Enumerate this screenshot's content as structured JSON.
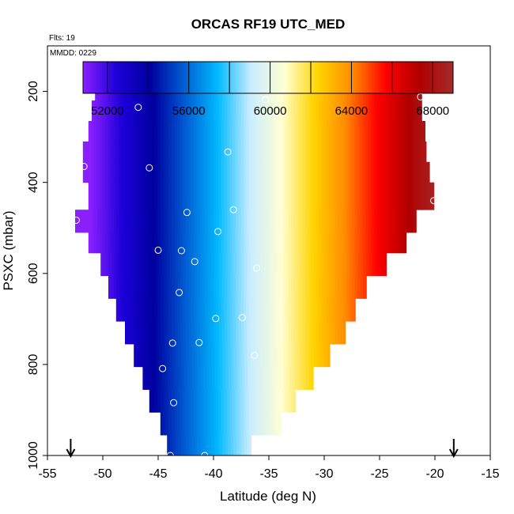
{
  "chart_data": {
    "type": "heatmap",
    "title": "ORCAS RF19 UTC_MED",
    "flights_note": "Flts: 19",
    "date_note": "MMDD: 0229",
    "xlabel": "Latitude (deg N)",
    "ylabel": "PSXC (mbar)",
    "xlim": [
      -55,
      -15
    ],
    "ylim": [
      1000,
      100
    ],
    "x_ticks": [
      -55,
      -50,
      -45,
      -40,
      -35,
      -30,
      -25,
      -20,
      -15
    ],
    "x_tick_labels": [
      "-55",
      "-50",
      "-45",
      "-40",
      "-35",
      "-30",
      "-25",
      "-20",
      "-15"
    ],
    "y_ticks": [
      200,
      400,
      600,
      800,
      1000
    ],
    "y_tick_labels": [
      "200",
      "400",
      "600",
      "800",
      "1000"
    ],
    "colorbar": {
      "range": [
        50800,
        69000
      ],
      "ticks": [
        52000,
        56000,
        60000,
        64000,
        68000
      ],
      "tick_labels": [
        "52000",
        "56000",
        "60000",
        "64000",
        "68000"
      ],
      "colors": [
        "#8a1fff",
        "#1c00d9",
        "#00009e",
        "#005ed4",
        "#00b9ff",
        "#c9ecff",
        "#ffffd3",
        "#ffd400",
        "#ff8c00",
        "#ff0000",
        "#b00000",
        "#a52a2a"
      ]
    },
    "value_model": {
      "value_at_lat_min": 50000,
      "lat_min": -52.5,
      "value_at_lat_max": 69000,
      "lat_max": -19.5
    },
    "coverage_rows": [
      {
        "p_top": 180,
        "p_bot": 205,
        "lat_min": -50.7,
        "lat_max": -25.3
      },
      {
        "p_top": 205,
        "p_bot": 220,
        "lat_min": -50.7,
        "lat_max": -21.2
      },
      {
        "p_top": 220,
        "p_bot": 265,
        "lat_min": -51.0,
        "lat_max": -21.2
      },
      {
        "p_top": 265,
        "p_bot": 310,
        "lat_min": -51.3,
        "lat_max": -20.9
      },
      {
        "p_top": 310,
        "p_bot": 355,
        "lat_min": -51.8,
        "lat_max": -20.8
      },
      {
        "p_top": 355,
        "p_bot": 400,
        "lat_min": -51.8,
        "lat_max": -20.5
      },
      {
        "p_top": 400,
        "p_bot": 460,
        "lat_min": -51.3,
        "lat_max": -20.1
      },
      {
        "p_top": 460,
        "p_bot": 510,
        "lat_min": -52.5,
        "lat_max": -21.7
      },
      {
        "p_top": 510,
        "p_bot": 555,
        "lat_min": -51.3,
        "lat_max": -22.6
      },
      {
        "p_top": 555,
        "p_bot": 605,
        "lat_min": -50.2,
        "lat_max": -24.4
      },
      {
        "p_top": 605,
        "p_bot": 655,
        "lat_min": -49.5,
        "lat_max": -26.2
      },
      {
        "p_top": 655,
        "p_bot": 705,
        "lat_min": -48.8,
        "lat_max": -27.2
      },
      {
        "p_top": 705,
        "p_bot": 755,
        "lat_min": -48.0,
        "lat_max": -28.1
      },
      {
        "p_top": 755,
        "p_bot": 805,
        "lat_min": -47.2,
        "lat_max": -29.5
      },
      {
        "p_top": 805,
        "p_bot": 855,
        "lat_min": -46.4,
        "lat_max": -31.0
      },
      {
        "p_top": 855,
        "p_bot": 905,
        "lat_min": -45.8,
        "lat_max": -32.6
      },
      {
        "p_top": 905,
        "p_bot": 955,
        "lat_min": -44.8,
        "lat_max": -33.9
      },
      {
        "p_top": 955,
        "p_bot": 1005,
        "lat_min": -44.2,
        "lat_max": -36.6
      }
    ],
    "sample_points": [
      {
        "lat": -50.5,
        "p": 188
      },
      {
        "lat": -48.0,
        "p": 186
      },
      {
        "lat": -46.8,
        "p": 235
      },
      {
        "lat": -35.0,
        "p": 188
      },
      {
        "lat": -35.3,
        "p": 218
      },
      {
        "lat": -25.5,
        "p": 186
      },
      {
        "lat": -21.3,
        "p": 212
      },
      {
        "lat": -51.7,
        "p": 365
      },
      {
        "lat": -45.8,
        "p": 368
      },
      {
        "lat": -38.7,
        "p": 333
      },
      {
        "lat": -20.1,
        "p": 440
      },
      {
        "lat": -52.4,
        "p": 483
      },
      {
        "lat": -42.4,
        "p": 466
      },
      {
        "lat": -38.2,
        "p": 460
      },
      {
        "lat": -39.6,
        "p": 508
      },
      {
        "lat": -45.0,
        "p": 549
      },
      {
        "lat": -42.9,
        "p": 550
      },
      {
        "lat": -41.7,
        "p": 574
      },
      {
        "lat": -36.1,
        "p": 588
      },
      {
        "lat": -43.1,
        "p": 642
      },
      {
        "lat": -39.8,
        "p": 699
      },
      {
        "lat": -37.4,
        "p": 697
      },
      {
        "lat": -43.7,
        "p": 753
      },
      {
        "lat": -41.3,
        "p": 752
      },
      {
        "lat": -36.3,
        "p": 780
      },
      {
        "lat": -44.6,
        "p": 809
      },
      {
        "lat": -43.6,
        "p": 884
      },
      {
        "lat": -43.9,
        "p": 1000
      },
      {
        "lat": -40.8,
        "p": 1000
      }
    ],
    "markers": [
      {
        "lat": -52.9,
        "label": "arrow"
      },
      {
        "lat": -18.3,
        "label": "arrow"
      }
    ]
  }
}
